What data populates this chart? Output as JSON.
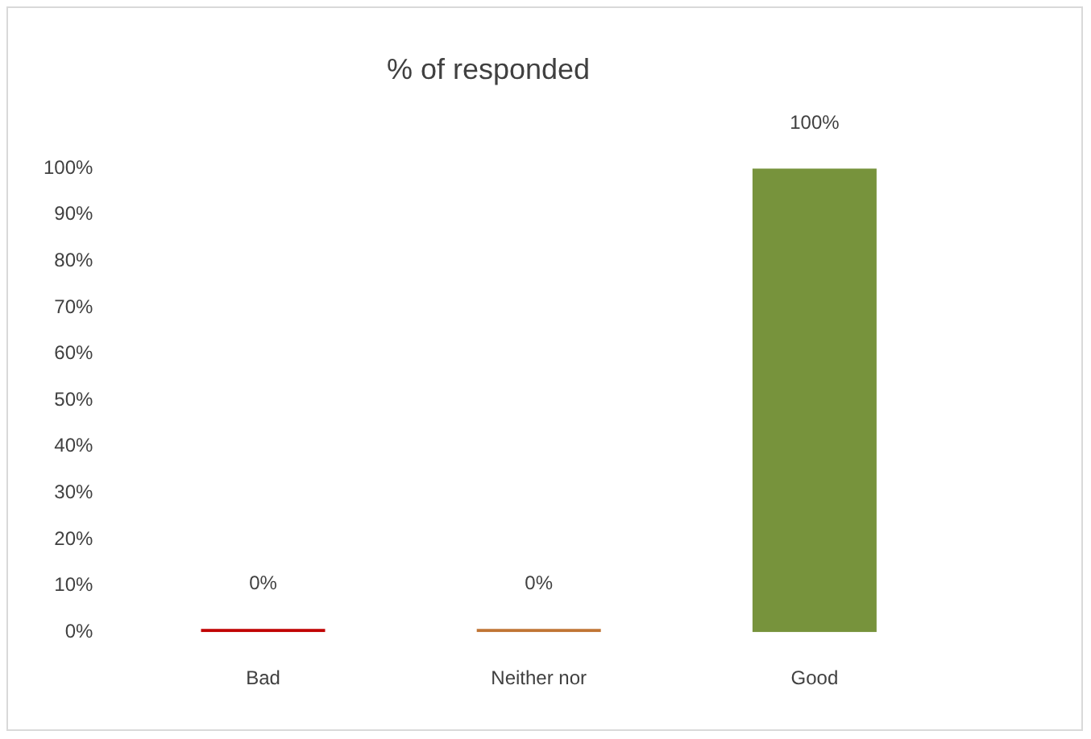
{
  "chart_data": {
    "type": "bar",
    "title": "% of responded",
    "categories": [
      "Bad",
      "Neither nor",
      "Good"
    ],
    "values": [
      0,
      0,
      100
    ],
    "colors": [
      "#c00000",
      "#c07535",
      "#77933c"
    ],
    "value_labels": [
      "0%",
      "0%",
      "100%"
    ],
    "ylim": [
      0,
      100
    ],
    "yticks": [
      {
        "value": 0,
        "label": "0%"
      },
      {
        "value": 10,
        "label": "10%"
      },
      {
        "value": 20,
        "label": "20%"
      },
      {
        "value": 30,
        "label": "30%"
      },
      {
        "value": 40,
        "label": "40%"
      },
      {
        "value": 50,
        "label": "50%"
      },
      {
        "value": 60,
        "label": "60%"
      },
      {
        "value": 70,
        "label": "70%"
      },
      {
        "value": 80,
        "label": "80%"
      },
      {
        "value": 90,
        "label": "90%"
      },
      {
        "value": 100,
        "label": "100%"
      }
    ],
    "grid": false,
    "legend": false
  }
}
